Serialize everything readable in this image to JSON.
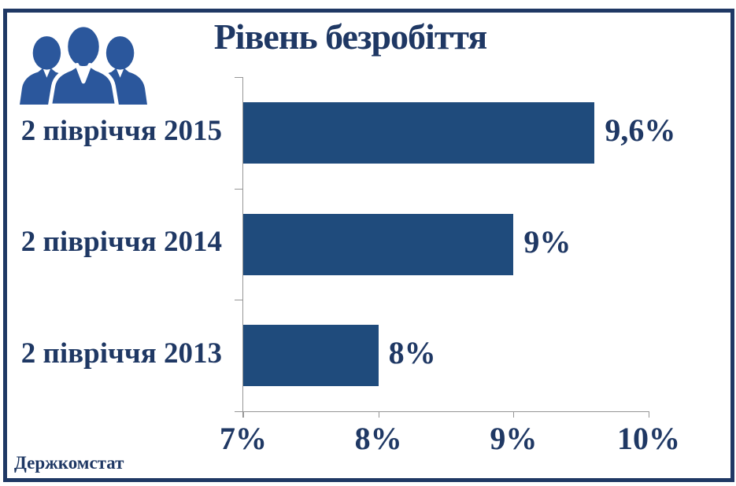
{
  "header": {
    "title": "Рівень безробіття"
  },
  "source": "Держкомстат",
  "icon": {
    "name": "people-group-icon",
    "color": "#2B579C"
  },
  "colors": {
    "bar": "#1F4B7C",
    "text": "#1F3864",
    "axis": "#969696",
    "frame": "#1F3864",
    "icon": "#2B579C",
    "background": "#FFFFFF"
  },
  "chart_data": {
    "type": "bar",
    "orientation": "horizontal",
    "title": "Рівень безробіття",
    "categories": [
      "2 півріччя 2015",
      "2 півріччя 2014",
      "2 півріччя 2013"
    ],
    "values": [
      9.6,
      9,
      8
    ],
    "value_labels": [
      "9,6%",
      "9%",
      "8%"
    ],
    "x_tick_labels": [
      "7%",
      "8%",
      "9%",
      "10%"
    ],
    "xlim": [
      7,
      10
    ],
    "xlabel": "",
    "ylabel": "",
    "grid": false,
    "legend": false,
    "value_labels_position": "end-of-bar",
    "source": "Держкомстат"
  }
}
